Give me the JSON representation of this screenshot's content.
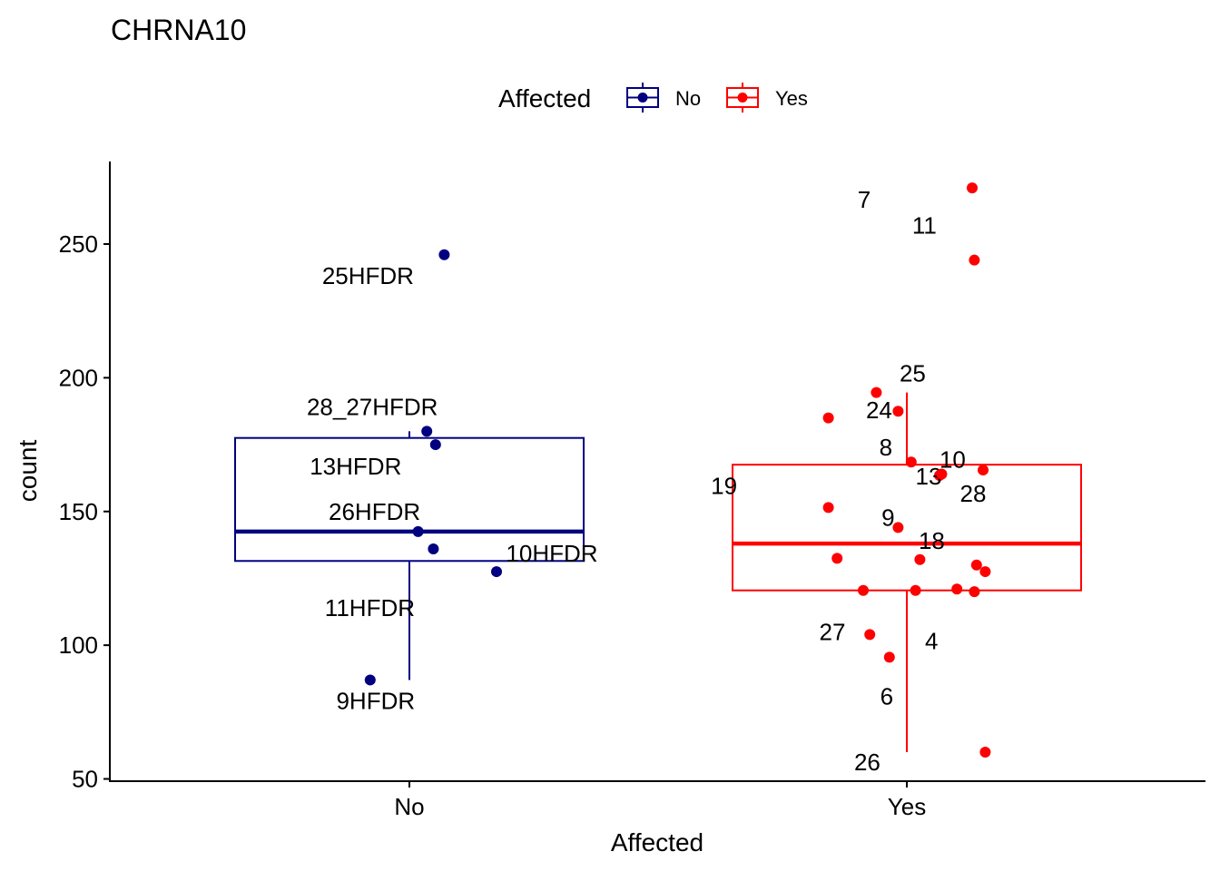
{
  "chart_data": {
    "type": "boxplot",
    "title": "CHRNA10",
    "xlabel": "Affected",
    "ylabel": "count",
    "categories": [
      "No",
      "Yes"
    ],
    "ylim": [
      50,
      280
    ],
    "yticks": [
      50,
      100,
      150,
      200,
      250
    ],
    "legend": {
      "title": "Affected",
      "position": "top",
      "entries": [
        {
          "label": "No",
          "color": "#000080"
        },
        {
          "label": "Yes",
          "color": "#ff0000"
        }
      ]
    },
    "grid": false,
    "series": [
      {
        "name": "No",
        "color": "#000080",
        "box": {
          "lower_whisker": 87,
          "q1": 131.5,
          "median": 142.5,
          "q3": 177.5,
          "upper_whisker": 180
        },
        "points": [
          {
            "label": "25HFDR",
            "value": 246,
            "jitter": 0.08
          },
          {
            "label": "28_27HFDR",
            "value": 180,
            "jitter": 0.04
          },
          {
            "label": "13HFDR",
            "value": 175,
            "jitter": 0.06
          },
          {
            "label": "26HFDR",
            "value": 142.5,
            "jitter": 0.02
          },
          {
            "label": "10HFDR",
            "value": 127.5,
            "jitter": 0.2
          },
          {
            "label": "11HFDR",
            "value": 136,
            "jitter": 0.055
          },
          {
            "label": "9HFDR",
            "value": 87,
            "jitter": -0.09
          }
        ]
      },
      {
        "name": "Yes",
        "color": "#ff0000",
        "box": {
          "lower_whisker": 60,
          "q1": 120.5,
          "median": 138,
          "q3": 167.5,
          "upper_whisker": 194.5
        },
        "points": [
          {
            "label": "7",
            "value": 271,
            "jitter": 0.15
          },
          {
            "label": "11",
            "value": 244,
            "jitter": 0.155
          },
          {
            "label": "25",
            "value": 194.5,
            "jitter": -0.07
          },
          {
            "label": "24",
            "value": 187.5,
            "jitter": -0.02
          },
          {
            "label": "13",
            "value": 163.5,
            "jitter": 0.075
          },
          {
            "label": "8",
            "value": 168.5,
            "jitter": 0.01
          },
          {
            "label": "10",
            "value": 164,
            "jitter": 0.08
          },
          {
            "label": "19",
            "value": 185,
            "jitter": -0.18
          },
          {
            "label": "28",
            "value": 165.5,
            "jitter": 0.175
          },
          {
            "label": "9",
            "value": 144,
            "jitter": -0.02
          },
          {
            "label": "18",
            "value": 132,
            "jitter": 0.03
          },
          {
            "label": "27",
            "value": 120.5,
            "jitter": -0.1
          },
          {
            "label": "4",
            "value": 104,
            "jitter": -0.085
          },
          {
            "label": "6",
            "value": 95.5,
            "jitter": -0.04
          },
          {
            "label": "26",
            "value": 60,
            "jitter": 0.18
          },
          {
            "label": "",
            "value": 151.5,
            "jitter": -0.18
          },
          {
            "label": "",
            "value": 132.5,
            "jitter": -0.16
          },
          {
            "label": "",
            "value": 120.5,
            "jitter": 0.02
          },
          {
            "label": "",
            "value": 121,
            "jitter": 0.115
          },
          {
            "label": "",
            "value": 120,
            "jitter": 0.155
          },
          {
            "label": "",
            "value": 130,
            "jitter": 0.16
          },
          {
            "label": "",
            "value": 127.5,
            "jitter": 0.18
          }
        ]
      }
    ]
  }
}
